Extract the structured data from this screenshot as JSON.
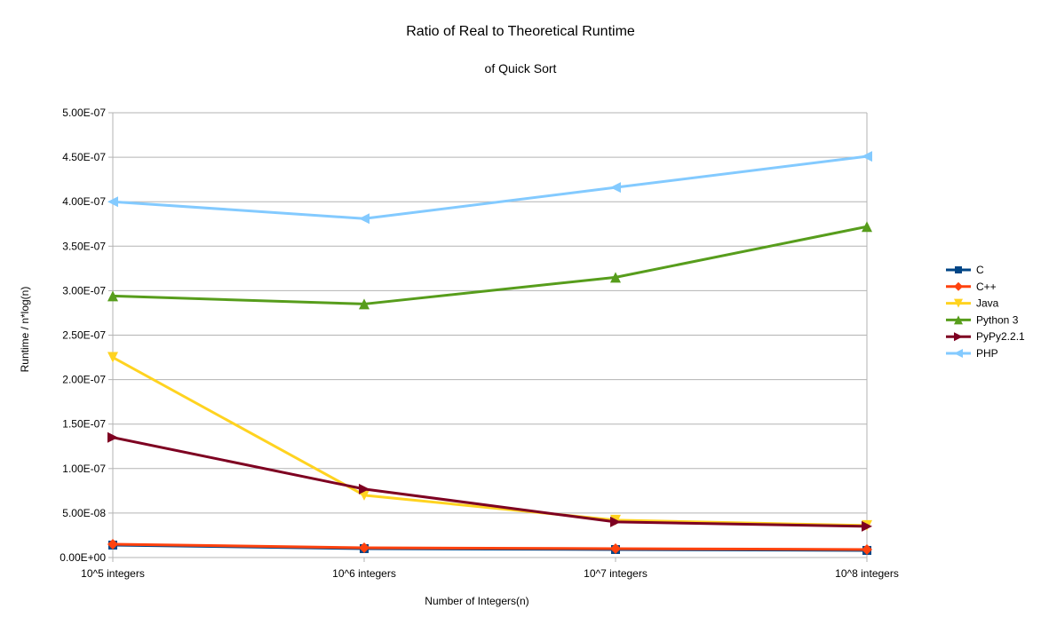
{
  "chart_data": {
    "type": "line",
    "title": "Ratio of Real to Theoretical Runtime",
    "subtitle": "of Quick Sort",
    "xlabel": "Number of Integers(n)",
    "ylabel": "Runtime / n*log(n)",
    "categories": [
      "10^5 integers",
      "10^6 integers",
      "10^7 integers",
      "10^8 integers"
    ],
    "ylim": [
      0,
      5e-07
    ],
    "yticks": [
      0,
      5e-08,
      1e-07,
      1.5e-07,
      2e-07,
      2.5e-07,
      3e-07,
      3.5e-07,
      4e-07,
      4.5e-07,
      5e-07
    ],
    "ytick_labels": [
      "0.00E+00",
      "5.00E-08",
      "1.00E-07",
      "1.50E-07",
      "2.00E-07",
      "2.50E-07",
      "3.00E-07",
      "3.50E-07",
      "4.00E-07",
      "4.50E-07",
      "5.00E-07"
    ],
    "grid": true,
    "legend_position": "right",
    "series": [
      {
        "name": "C",
        "color": "#004586",
        "marker": "square",
        "values": [
          1.4e-08,
          1e-08,
          9e-09,
          8e-09
        ]
      },
      {
        "name": "C++",
        "color": "#ff420e",
        "marker": "diamond",
        "values": [
          1.5e-08,
          1.1e-08,
          1e-08,
          9e-09
        ]
      },
      {
        "name": "Java",
        "color": "#ffd320",
        "marker": "triangle-down",
        "values": [
          2.25e-07,
          7e-08,
          4.2e-08,
          3.6e-08
        ]
      },
      {
        "name": "Python 3",
        "color": "#579d1c",
        "marker": "triangle-up",
        "values": [
          2.94e-07,
          2.85e-07,
          3.15e-07,
          3.72e-07
        ]
      },
      {
        "name": "PyPy2.2.1",
        "color": "#7e0021",
        "marker": "triangle-right",
        "values": [
          1.35e-07,
          7.7e-08,
          4e-08,
          3.5e-08
        ]
      },
      {
        "name": "PHP",
        "color": "#83caff",
        "marker": "triangle-left",
        "values": [
          4e-07,
          3.81e-07,
          4.16e-07,
          4.51e-07
        ]
      }
    ]
  }
}
